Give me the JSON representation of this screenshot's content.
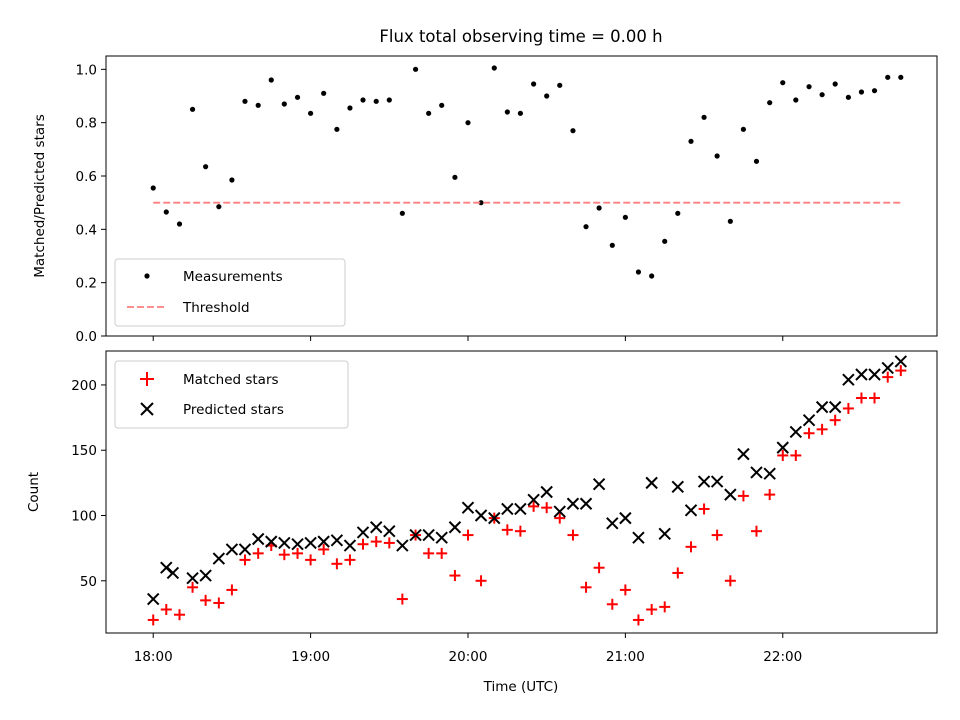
{
  "chart_data": [
    {
      "type": "scatter",
      "title": "Flux total observing time = 0.00 h",
      "ylabel": "Matched/Predicted stars",
      "xlabel": "",
      "x_unit": "hours (UTC)",
      "xlim": [
        17.7,
        22.98
      ],
      "ylim": [
        0.0,
        1.05
      ],
      "yticks": [
        0.0,
        0.2,
        0.4,
        0.6,
        0.8,
        1.0
      ],
      "ytick_labels": [
        "0.0",
        "0.2",
        "0.4",
        "0.6",
        "0.8",
        "1.0"
      ],
      "xticks": [
        18,
        19,
        20,
        21,
        22
      ],
      "legend_position": "lower-left",
      "series": [
        {
          "name": "Measurements",
          "style": "dots",
          "color": "#000000",
          "x": [
            18.0,
            18.083,
            18.167,
            18.25,
            18.333,
            18.417,
            18.5,
            18.583,
            18.667,
            18.75,
            18.833,
            18.917,
            19.0,
            19.083,
            19.167,
            19.25,
            19.333,
            19.417,
            19.5,
            19.583,
            19.667,
            19.75,
            19.833,
            19.917,
            20.0,
            20.083,
            20.167,
            20.25,
            20.333,
            20.417,
            20.5,
            20.583,
            20.667,
            20.75,
            20.833,
            20.917,
            21.0,
            21.083,
            21.167,
            21.25,
            21.333,
            21.417,
            21.5,
            21.583,
            21.667,
            21.75,
            21.833,
            21.917,
            22.0,
            22.083,
            22.167,
            22.25,
            22.333,
            22.417,
            22.5,
            22.583,
            22.667,
            22.75
          ],
          "values": [
            0.555,
            0.465,
            0.42,
            0.85,
            0.635,
            0.485,
            0.585,
            0.88,
            0.865,
            0.96,
            0.87,
            0.895,
            0.835,
            0.91,
            0.775,
            0.855,
            0.885,
            0.88,
            0.885,
            0.46,
            1.0,
            0.835,
            0.865,
            0.595,
            0.8,
            0.5,
            1.005,
            0.84,
            0.835,
            0.945,
            0.9,
            0.94,
            0.77,
            0.41,
            0.48,
            0.34,
            0.445,
            0.24,
            0.225,
            0.355,
            0.46,
            0.73,
            0.82,
            0.675,
            0.43,
            0.775,
            0.655,
            0.875,
            0.95,
            0.885,
            0.935,
            0.905,
            0.945,
            0.895,
            0.915,
            0.92,
            0.97,
            0.97
          ]
        },
        {
          "name": "Threshold",
          "style": "dashed-line",
          "color": "#ff7f7f",
          "x": [
            18.0,
            22.75
          ],
          "values": [
            0.5,
            0.5
          ]
        }
      ]
    },
    {
      "type": "scatter",
      "title": "",
      "ylabel": "Count",
      "xlabel": "Time (UTC)",
      "x_unit": "hours (UTC)",
      "xlim": [
        17.7,
        22.98
      ],
      "ylim": [
        10,
        226
      ],
      "yticks": [
        50,
        100,
        150,
        200
      ],
      "ytick_labels": [
        "50",
        "100",
        "150",
        "200"
      ],
      "xticks": [
        18,
        19,
        20,
        21,
        22
      ],
      "xtick_labels": [
        "18:00",
        "19:00",
        "20:00",
        "21:00",
        "22:00"
      ],
      "legend_position": "upper-left",
      "series": [
        {
          "name": "Matched stars",
          "marker": "plus",
          "color": "#ff0000",
          "x": [
            18.0,
            18.083,
            18.167,
            18.25,
            18.333,
            18.417,
            18.5,
            18.583,
            18.667,
            18.75,
            18.833,
            18.917,
            19.0,
            19.083,
            19.167,
            19.25,
            19.333,
            19.417,
            19.5,
            19.583,
            19.667,
            19.75,
            19.833,
            19.917,
            20.0,
            20.083,
            20.167,
            20.25,
            20.333,
            20.417,
            20.5,
            20.583,
            20.667,
            20.75,
            20.833,
            20.917,
            21.0,
            21.083,
            21.167,
            21.25,
            21.333,
            21.417,
            21.5,
            21.583,
            21.667,
            21.75,
            21.833,
            21.917,
            22.0,
            22.083,
            22.167,
            22.25,
            22.333,
            22.417,
            22.5,
            22.583,
            22.667,
            22.75
          ],
          "values": [
            20,
            28,
            24,
            45,
            35,
            33,
            43,
            66,
            71,
            77,
            70,
            71,
            66,
            74,
            63,
            66,
            78,
            80,
            79,
            36,
            85,
            71,
            71,
            54,
            85,
            50,
            98,
            89,
            88,
            107,
            106,
            98,
            85,
            45,
            60,
            32,
            43,
            20,
            28,
            30,
            56,
            76,
            105,
            85,
            50,
            115,
            88,
            116,
            146,
            146,
            163,
            166,
            173,
            182,
            190,
            190,
            206,
            211
          ]
        },
        {
          "name": "Predicted stars",
          "marker": "x",
          "color": "#000000",
          "x": [
            18.0,
            18.083,
            18.125,
            18.25,
            18.333,
            18.417,
            18.5,
            18.583,
            18.667,
            18.75,
            18.833,
            18.917,
            19.0,
            19.083,
            19.167,
            19.25,
            19.333,
            19.417,
            19.5,
            19.583,
            19.667,
            19.75,
            19.833,
            19.917,
            20.0,
            20.083,
            20.167,
            20.25,
            20.333,
            20.417,
            20.5,
            20.583,
            20.667,
            20.75,
            20.833,
            20.917,
            21.0,
            21.083,
            21.167,
            21.25,
            21.333,
            21.417,
            21.5,
            21.583,
            21.667,
            21.75,
            21.833,
            21.917,
            22.0,
            22.083,
            22.167,
            22.25,
            22.333,
            22.417,
            22.5,
            22.583,
            22.667,
            22.75
          ],
          "values": [
            36,
            60,
            56,
            52,
            54,
            67,
            74,
            74,
            82,
            80,
            79,
            78,
            79,
            80,
            81,
            77,
            87,
            91,
            88,
            77,
            85,
            85,
            83,
            91,
            106,
            100,
            98,
            105,
            105,
            112,
            118,
            103,
            109,
            109,
            124,
            94,
            98,
            83,
            125,
            86,
            122,
            104,
            126,
            126,
            116,
            147,
            133,
            132,
            152,
            164,
            173,
            183,
            183,
            204,
            208,
            208,
            213,
            218
          ]
        }
      ]
    }
  ]
}
